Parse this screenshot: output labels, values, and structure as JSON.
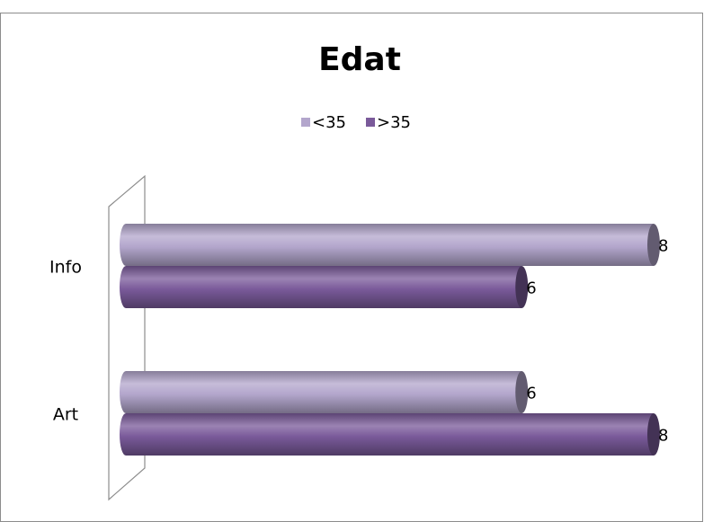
{
  "chart_data": {
    "type": "bar",
    "orientation": "horizontal",
    "title": "Edat",
    "categories": [
      "Info",
      "Art"
    ],
    "series": [
      {
        "name": "<35",
        "color": "#b3a6cc",
        "values": [
          8,
          6
        ]
      },
      {
        "name": ">35",
        "color": "#7a5a9a",
        "values": [
          6,
          8
        ]
      }
    ],
    "legend": "top"
  }
}
